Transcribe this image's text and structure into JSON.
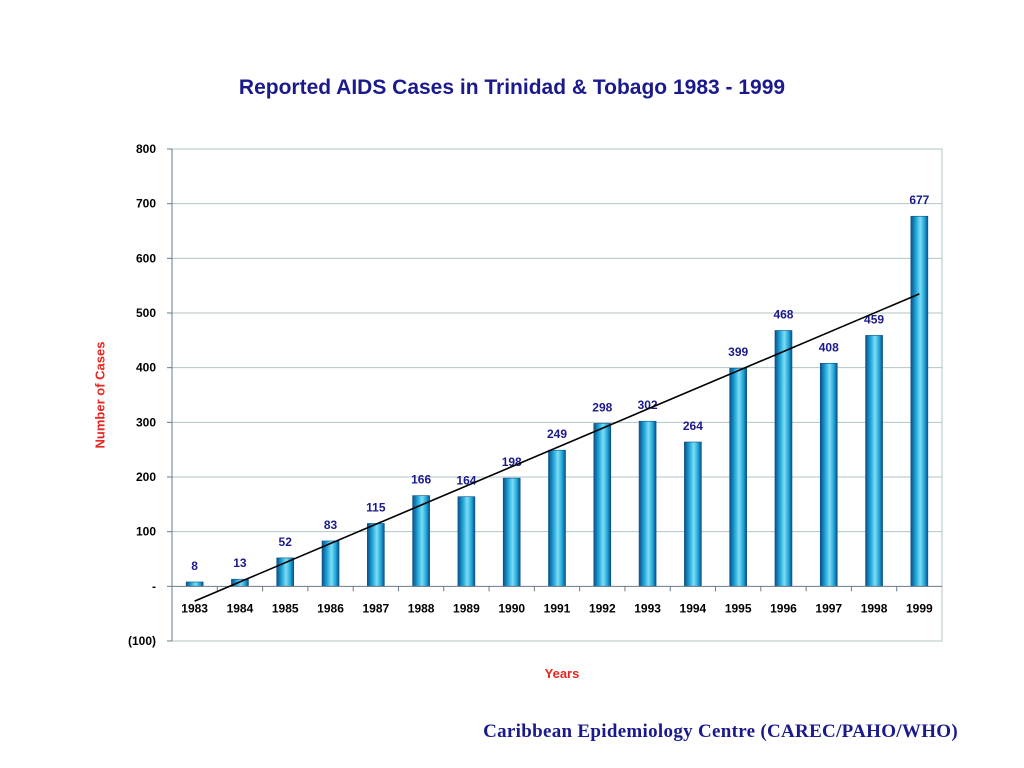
{
  "chart_data": {
    "type": "bar",
    "title": "Reported AIDS Cases in Trinidad & Tobago 1983 - 1999",
    "xlabel": "Years",
    "ylabel": "Number of Cases",
    "categories": [
      "1983",
      "1984",
      "1985",
      "1986",
      "1987",
      "1988",
      "1989",
      "1990",
      "1991",
      "1992",
      "1993",
      "1994",
      "1995",
      "1996",
      "1997",
      "1998",
      "1999"
    ],
    "values": [
      8,
      13,
      52,
      83,
      115,
      166,
      164,
      198,
      249,
      298,
      302,
      264,
      399,
      468,
      408,
      459,
      677
    ],
    "ylim": [
      -100,
      800
    ],
    "yticks": [
      800,
      700,
      600,
      500,
      400,
      300,
      200,
      100,
      0,
      -100
    ],
    "ytick_labels": [
      "800",
      "700",
      "600",
      "500",
      "400",
      "300",
      "200",
      "100",
      "-",
      "(100)"
    ],
    "trendline": {
      "type": "linear",
      "start": -27,
      "end": 535
    },
    "grid": true,
    "legend": "none",
    "colors": {
      "bar": "#1fa7d8",
      "bar_edge": "#0b4f8a",
      "label": "#1a1a8c",
      "axis_title": "#e8261f",
      "grid": "#b0c4c4"
    }
  },
  "footer": "Caribbean Epidemiology Centre (CAREC/PAHO/WHO)"
}
